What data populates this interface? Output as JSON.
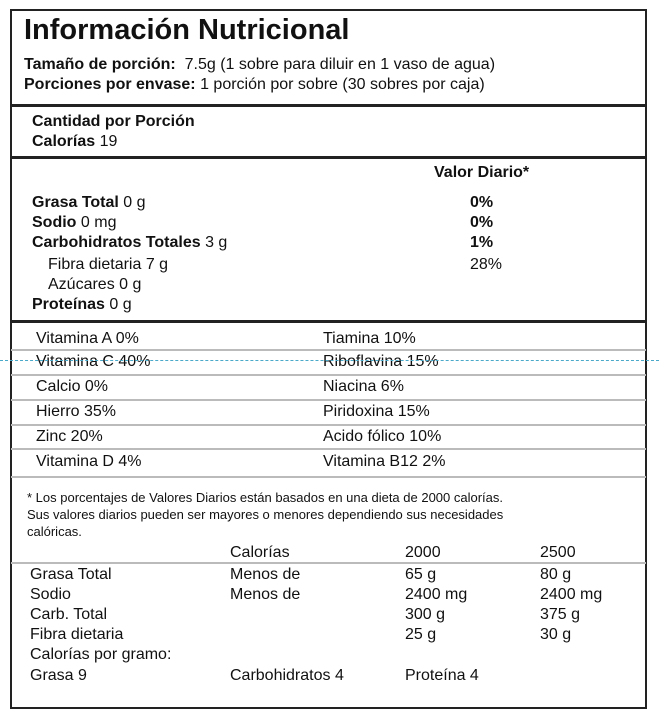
{
  "title": "Información Nutricional",
  "serving": {
    "size_label": "Tamaño de porción:",
    "size_value": "7.5g (1 sobre para diluir en 1 vaso de agua)",
    "per_label": "Porciones por envase:",
    "per_value": "1 porción por sobre (30 sobres por caja)"
  },
  "amount": {
    "label": "Cantidad por Porción",
    "calories_label": "Calorías",
    "calories_value": "19"
  },
  "dv_header": "Valor Diario*",
  "nutrients": [
    {
      "label": "Grasa Total",
      "value": "0 g",
      "pct": "0%"
    },
    {
      "label": "Sodio",
      "value": "0 mg",
      "pct": "0%"
    },
    {
      "label": "Carbohidratos Totales",
      "value": "3 g",
      "pct": "1%"
    },
    {
      "label": "Fibra dietaria",
      "value": "7 g",
      "pct": "28%"
    },
    {
      "label": "Azúcares",
      "value": "0 g",
      "pct": ""
    },
    {
      "label": "Proteínas",
      "value": "0 g",
      "pct": ""
    }
  ],
  "vitamins": [
    [
      "Vitamina A 0%",
      "Tiamina 10%"
    ],
    [
      "Vitamina C 40%",
      "Riboflavina 15%"
    ],
    [
      "Calcio 0%",
      "Niacina 6%"
    ],
    [
      "Hierro 35%",
      "Piridoxina 15%"
    ],
    [
      "Zinc 20%",
      "Acido fólico 10%"
    ],
    [
      "Vitamina D 4%",
      "Vitamina B12 2%"
    ]
  ],
  "footnote": [
    "* Los porcentajes de Valores Diarios están basados en una dieta de 2000 calorías.",
    "Sus valores diarios pueden ser mayores o menores dependiendo sus necesidades",
    "calóricas."
  ],
  "reference": {
    "header": [
      "",
      "Calorías",
      "2000",
      "2500"
    ],
    "rows": [
      [
        "Grasa Total",
        "Menos de",
        "65 g",
        "80 g"
      ],
      [
        "Sodio",
        "Menos de",
        "2400 mg",
        "2400 mg"
      ],
      [
        "Carb. Total",
        "",
        "300 g",
        "375 g"
      ],
      [
        "Fibra dietaria",
        "",
        "25 g",
        "30 g"
      ],
      [
        "Calorías por gramo:",
        "",
        "",
        ""
      ],
      [
        "Grasa 9",
        "Carbohidratos 4",
        "Proteína 4",
        ""
      ]
    ]
  },
  "colors": {
    "guide_line": "#4aa8c8"
  }
}
